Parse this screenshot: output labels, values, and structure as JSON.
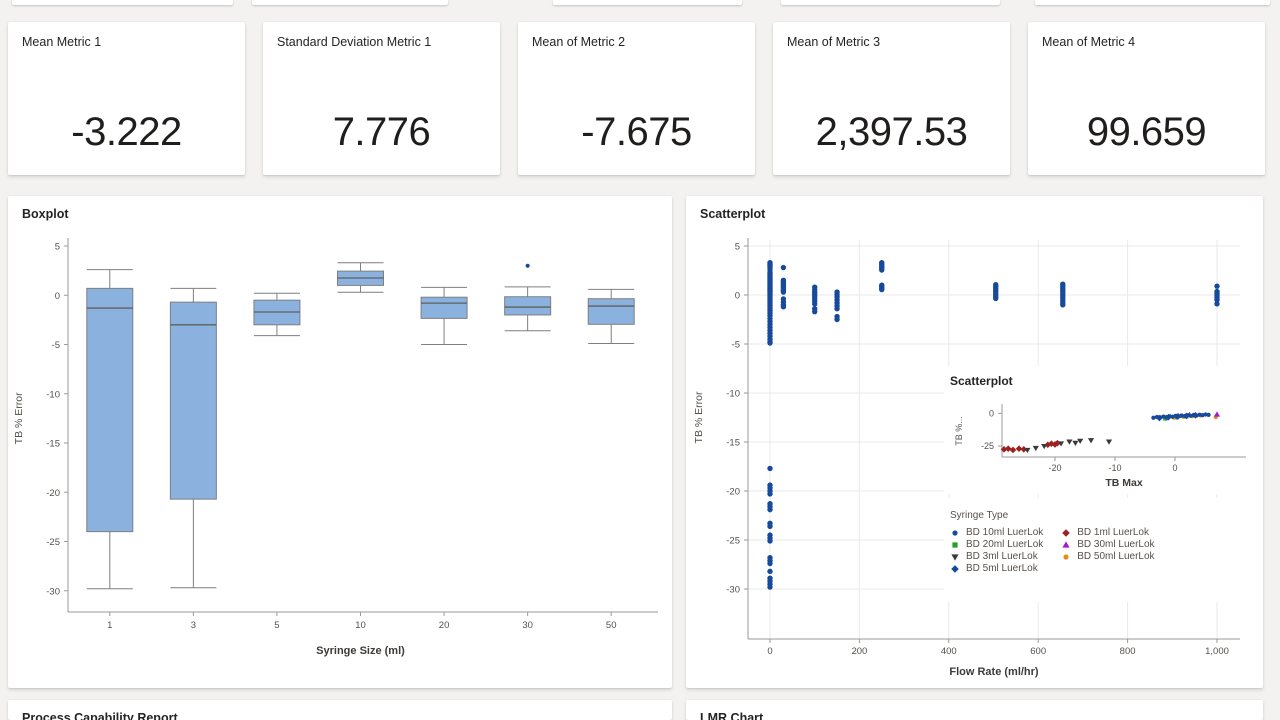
{
  "metrics": [
    {
      "label": "Mean Metric 1",
      "value": "-3.222"
    },
    {
      "label": "Standard Deviation Metric 1",
      "value": "7.776"
    },
    {
      "label": "Mean of Metric 2",
      "value": "-7.675"
    },
    {
      "label": "Mean of Metric 3",
      "value": "2,397.53"
    },
    {
      "label": "Mean of Metric 4",
      "value": "99.659"
    }
  ],
  "bottom_cards": [
    {
      "title": "Process Capability Report"
    },
    {
      "title": "LMR Chart"
    }
  ],
  "colors": {
    "page_bg": "#f3f2f1",
    "card_bg": "#ffffff",
    "scatter_blue": "#17499c",
    "box_fill": "#8bb1df",
    "box_stroke": "#7f7f7f",
    "gridline": "#e9e9e9",
    "axis": "#9a9a9a",
    "tick_text": "#55504b",
    "axis_title_text": "#3d3a37"
  },
  "chart_data": [
    {
      "type": "box",
      "title": "Boxplot",
      "xlabel": "Syringe Size (ml)",
      "ylabel": "TB % Error",
      "categories": [
        "1",
        "3",
        "5",
        "10",
        "20",
        "30",
        "50"
      ],
      "y_ticks": [
        5,
        0,
        -5,
        -10,
        -15,
        -20,
        -25,
        -30
      ],
      "y_tick_labels": [
        "5",
        "0",
        "-5",
        "-10",
        "-15",
        "-20",
        "-25",
        "-30"
      ],
      "ylim": [
        -35,
        5
      ],
      "grid": false,
      "box_fill": "#8bb1df",
      "box_stroke": "#7f7f7f",
      "median_color": "#5f5f5f",
      "outlier_color": "#17499c",
      "boxes": [
        {
          "whislo": -29.8,
          "q1": -24.0,
          "med": -1.3,
          "q3": 0.7,
          "whishi": 2.6,
          "outliers": []
        },
        {
          "whislo": -29.7,
          "q1": -20.7,
          "med": -3.0,
          "q3": -0.7,
          "whishi": 0.7,
          "outliers": []
        },
        {
          "whislo": -4.1,
          "q1": -3.0,
          "med": -1.7,
          "q3": -0.5,
          "whishi": 0.2,
          "outliers": []
        },
        {
          "whislo": 0.3,
          "q1": 1.0,
          "med": 1.75,
          "q3": 2.45,
          "whishi": 3.3,
          "outliers": []
        },
        {
          "whislo": -5.0,
          "q1": -2.35,
          "med": -0.8,
          "q3": -0.2,
          "whishi": 0.8,
          "outliers": []
        },
        {
          "whislo": -3.6,
          "q1": -2.0,
          "med": -1.2,
          "q3": -0.15,
          "whishi": 0.85,
          "outliers": [
            3.0
          ]
        },
        {
          "whislo": -4.9,
          "q1": -2.95,
          "med": -1.1,
          "q3": -0.35,
          "whishi": 0.6,
          "outliers": []
        }
      ]
    },
    {
      "type": "scatter",
      "title": "Scatterplot",
      "xlabel": "Flow Rate (ml/hr)",
      "ylabel": "TB % Error",
      "x_ticks": [
        0,
        200,
        400,
        600,
        800,
        1000
      ],
      "x_tick_labels": [
        "0",
        "200",
        "400",
        "600",
        "800",
        "1,000"
      ],
      "y_ticks": [
        5,
        0,
        -5,
        -10,
        -15,
        -20,
        -25,
        -30
      ],
      "y_tick_labels": [
        "5",
        "0",
        "-5",
        "-10",
        "-15",
        "-20",
        "-25",
        "-30"
      ],
      "xlim": [
        -50,
        1050
      ],
      "ylim": [
        -35,
        5
      ],
      "grid": true,
      "point_color": "#17499c",
      "clusters": [
        {
          "x": 0,
          "y": [
            3.3,
            3.15,
            3.0,
            2.85,
            2.6,
            2.3,
            2.15,
            2.0,
            1.85,
            1.7,
            1.55,
            1.4,
            1.25,
            1.1,
            0.95,
            0.8,
            0.65,
            0.5,
            0.35,
            0.2,
            0.05,
            -0.1,
            -0.3,
            -0.5,
            -0.7,
            -0.9,
            -1.1,
            -1.35,
            -1.6,
            -1.85,
            -2.1,
            -2.4,
            -2.7,
            -3.0,
            -3.3,
            -3.6,
            -3.9,
            -4.2,
            -4.5,
            -4.75,
            -4.9
          ]
        },
        {
          "x": 0,
          "y": [
            -17.7,
            -19.4,
            -19.7,
            -20.0,
            -20.3,
            -21.3,
            -21.6,
            -21.9,
            -23.3,
            -23.6,
            -24.5,
            -24.8,
            -25.1,
            -26.8,
            -27.1,
            -27.4,
            -28.2,
            -28.9,
            -29.2,
            -29.5,
            -29.8
          ]
        },
        {
          "x": 30,
          "y": [
            2.8,
            1.5,
            1.35,
            1.2,
            1.05,
            0.9,
            0.75,
            0.6,
            0.45,
            0.3,
            -0.4,
            -0.7,
            -1.0,
            -1.2
          ]
        },
        {
          "x": 100,
          "y": [
            0.8,
            0.55,
            0.3,
            0.1,
            -0.1,
            -0.35,
            -0.6,
            -0.9,
            -1.4,
            -1.7
          ]
        },
        {
          "x": 150,
          "y": [
            0.3,
            0.05,
            -0.2,
            -0.5,
            -0.8,
            -1.1,
            -1.4,
            -2.2,
            -2.5
          ]
        },
        {
          "x": 250,
          "y": [
            3.3,
            3.15,
            3.0,
            2.85,
            2.7,
            2.55,
            1.0,
            0.85,
            0.7,
            0.55
          ]
        },
        {
          "x": 505,
          "y": [
            1.05,
            0.85,
            0.65,
            0.45,
            0.25,
            0.05,
            -0.15,
            -0.35
          ]
        },
        {
          "x": 655,
          "y": [
            1.1,
            0.9,
            0.7,
            0.5,
            0.3,
            0.1,
            -0.1,
            -0.3,
            -0.55,
            -0.8,
            -1.0
          ]
        },
        {
          "x": 1000,
          "y": [
            0.9,
            0.35,
            0.15,
            -0.05,
            -0.25,
            -0.5,
            -0.9
          ]
        }
      ],
      "legend": {
        "title": "Syringe Type",
        "columns": [
          [
            {
              "label": "BD 10ml LuerLok",
              "marker": "circle",
              "color": "#17499c"
            },
            {
              "label": "BD 20ml LuerLok",
              "marker": "square",
              "color": "#23a127"
            },
            {
              "label": "BD 3ml LuerLok",
              "marker": "triangle-down",
              "color": "#3a3a3a"
            },
            {
              "label": "BD 5ml LuerLok",
              "marker": "diamond",
              "color": "#17499c"
            }
          ],
          [
            {
              "label": "BD 1ml LuerLok",
              "marker": "diamond",
              "color": "#9e2121"
            },
            {
              "label": "BD 30ml LuerLok",
              "marker": "triangle-up",
              "color": "#a21ad4"
            },
            {
              "label": "BD 50ml LuerLok",
              "marker": "circle",
              "color": "#e39112"
            }
          ]
        ]
      }
    },
    {
      "type": "scatter",
      "title": "Scatterplot",
      "xlabel": "TB Max",
      "ylabel": "TB %...",
      "x_ticks": [
        -20,
        -10,
        0
      ],
      "x_tick_labels": [
        "-20",
        "-10",
        "0"
      ],
      "y_ticks": [
        0,
        -25
      ],
      "y_tick_labels": [
        "0",
        "-25"
      ],
      "xlim": [
        -30,
        10
      ],
      "ylim": [
        -33,
        3
      ],
      "grid": false,
      "series": [
        {
          "name": "BD 1ml LuerLok",
          "marker": "diamond",
          "color": "#9e2121",
          "points": [
            [
              -28.5,
              -27.5
            ],
            [
              -27.8,
              -27.0
            ],
            [
              -27.0,
              -28.0
            ],
            [
              -26.0,
              -27.0
            ],
            [
              -25.2,
              -27.5
            ],
            [
              -21.2,
              -24.0
            ],
            [
              -20.6,
              -23.2
            ],
            [
              -20.0,
              -23.8
            ],
            [
              -19.6,
              -22.8
            ]
          ]
        },
        {
          "name": "BD 3ml LuerLok",
          "marker": "triangle-down",
          "color": "#3a3a3a",
          "points": [
            [
              -24.6,
              -28.0
            ],
            [
              -23.2,
              -26.5
            ],
            [
              -21.8,
              -25.0
            ],
            [
              -19.0,
              -23.0
            ],
            [
              -17.6,
              -21.6
            ],
            [
              -16.6,
              -22.6
            ],
            [
              -15.8,
              -21.0
            ],
            [
              -14.0,
              -20.6
            ],
            [
              -11.0,
              -21.6
            ]
          ]
        },
        {
          "name": "BD 20ml LuerLok",
          "marker": "square",
          "color": "#23a127",
          "points": [
            [
              -1.6,
              -4.0
            ],
            [
              0.3,
              -3.1
            ],
            [
              1.9,
              -2.3
            ],
            [
              3.3,
              -1.6
            ]
          ]
        },
        {
          "name": "BD 50ml LuerLok",
          "marker": "circle",
          "color": "#e39112",
          "points": [
            [
              -0.2,
              -3.3
            ],
            [
              1.4,
              -2.7
            ],
            [
              2.9,
              -2.3
            ],
            [
              4.3,
              -1.7
            ],
            [
              6.8,
              -2.9
            ]
          ]
        },
        {
          "name": "BD 30ml LuerLok",
          "marker": "triangle-up",
          "color": "#a21ad4",
          "points": [
            [
              0.6,
              -2.0
            ],
            [
              2.4,
              -1.2
            ],
            [
              7.0,
              -0.9
            ]
          ]
        },
        {
          "name": "BD 5ml LuerLok",
          "marker": "diamond",
          "color": "#17499c",
          "points": [
            [
              -2.6,
              -3.6
            ],
            [
              -1.1,
              -3.0
            ],
            [
              0.4,
              -2.5
            ],
            [
              1.9,
              -2.0
            ],
            [
              3.4,
              -1.5
            ]
          ]
        },
        {
          "name": "BD 10ml LuerLok",
          "marker": "circle",
          "color": "#17499c",
          "points": [
            [
              -3.6,
              -3.4
            ],
            [
              -3.0,
              -2.8
            ],
            [
              -2.4,
              -3.1
            ],
            [
              -1.9,
              -2.5
            ],
            [
              -1.4,
              -2.9
            ],
            [
              -0.9,
              -2.2
            ],
            [
              -0.4,
              -2.6
            ],
            [
              0.1,
              -1.9
            ],
            [
              0.6,
              -2.3
            ],
            [
              1.1,
              -1.7
            ],
            [
              1.6,
              -2.1
            ],
            [
              2.1,
              -1.5
            ],
            [
              2.6,
              -1.9
            ],
            [
              3.1,
              -1.3
            ],
            [
              3.6,
              -1.7
            ],
            [
              4.1,
              -1.1
            ],
            [
              4.6,
              -1.4
            ],
            [
              5.1,
              -0.9
            ],
            [
              5.6,
              -1.2
            ]
          ]
        }
      ]
    }
  ]
}
